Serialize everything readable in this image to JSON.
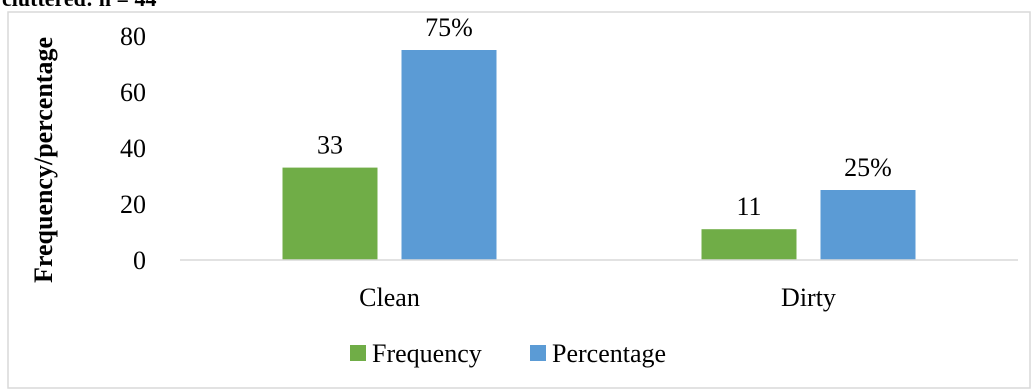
{
  "top_text": "cluttered: n = 44",
  "colors": {
    "frequency": "#70ad47",
    "percentage": "#5b9bd5",
    "axis": "#d9d9d9",
    "frame": "#d9d9d9"
  },
  "chart_data": {
    "type": "bar",
    "categories": [
      "Clean",
      "Dirty"
    ],
    "series": [
      {
        "name": "Frequency",
        "values": [
          33,
          11
        ],
        "labels": [
          "33",
          "11"
        ]
      },
      {
        "name": "Percentage",
        "values": [
          75,
          25
        ],
        "labels": [
          "75%",
          "25%"
        ]
      }
    ],
    "ylabel": "Frequency/percentage",
    "ylim": [
      0,
      80
    ],
    "yticks": [
      0,
      20,
      40,
      60,
      80
    ],
    "grid": false,
    "legend": "bottom"
  }
}
